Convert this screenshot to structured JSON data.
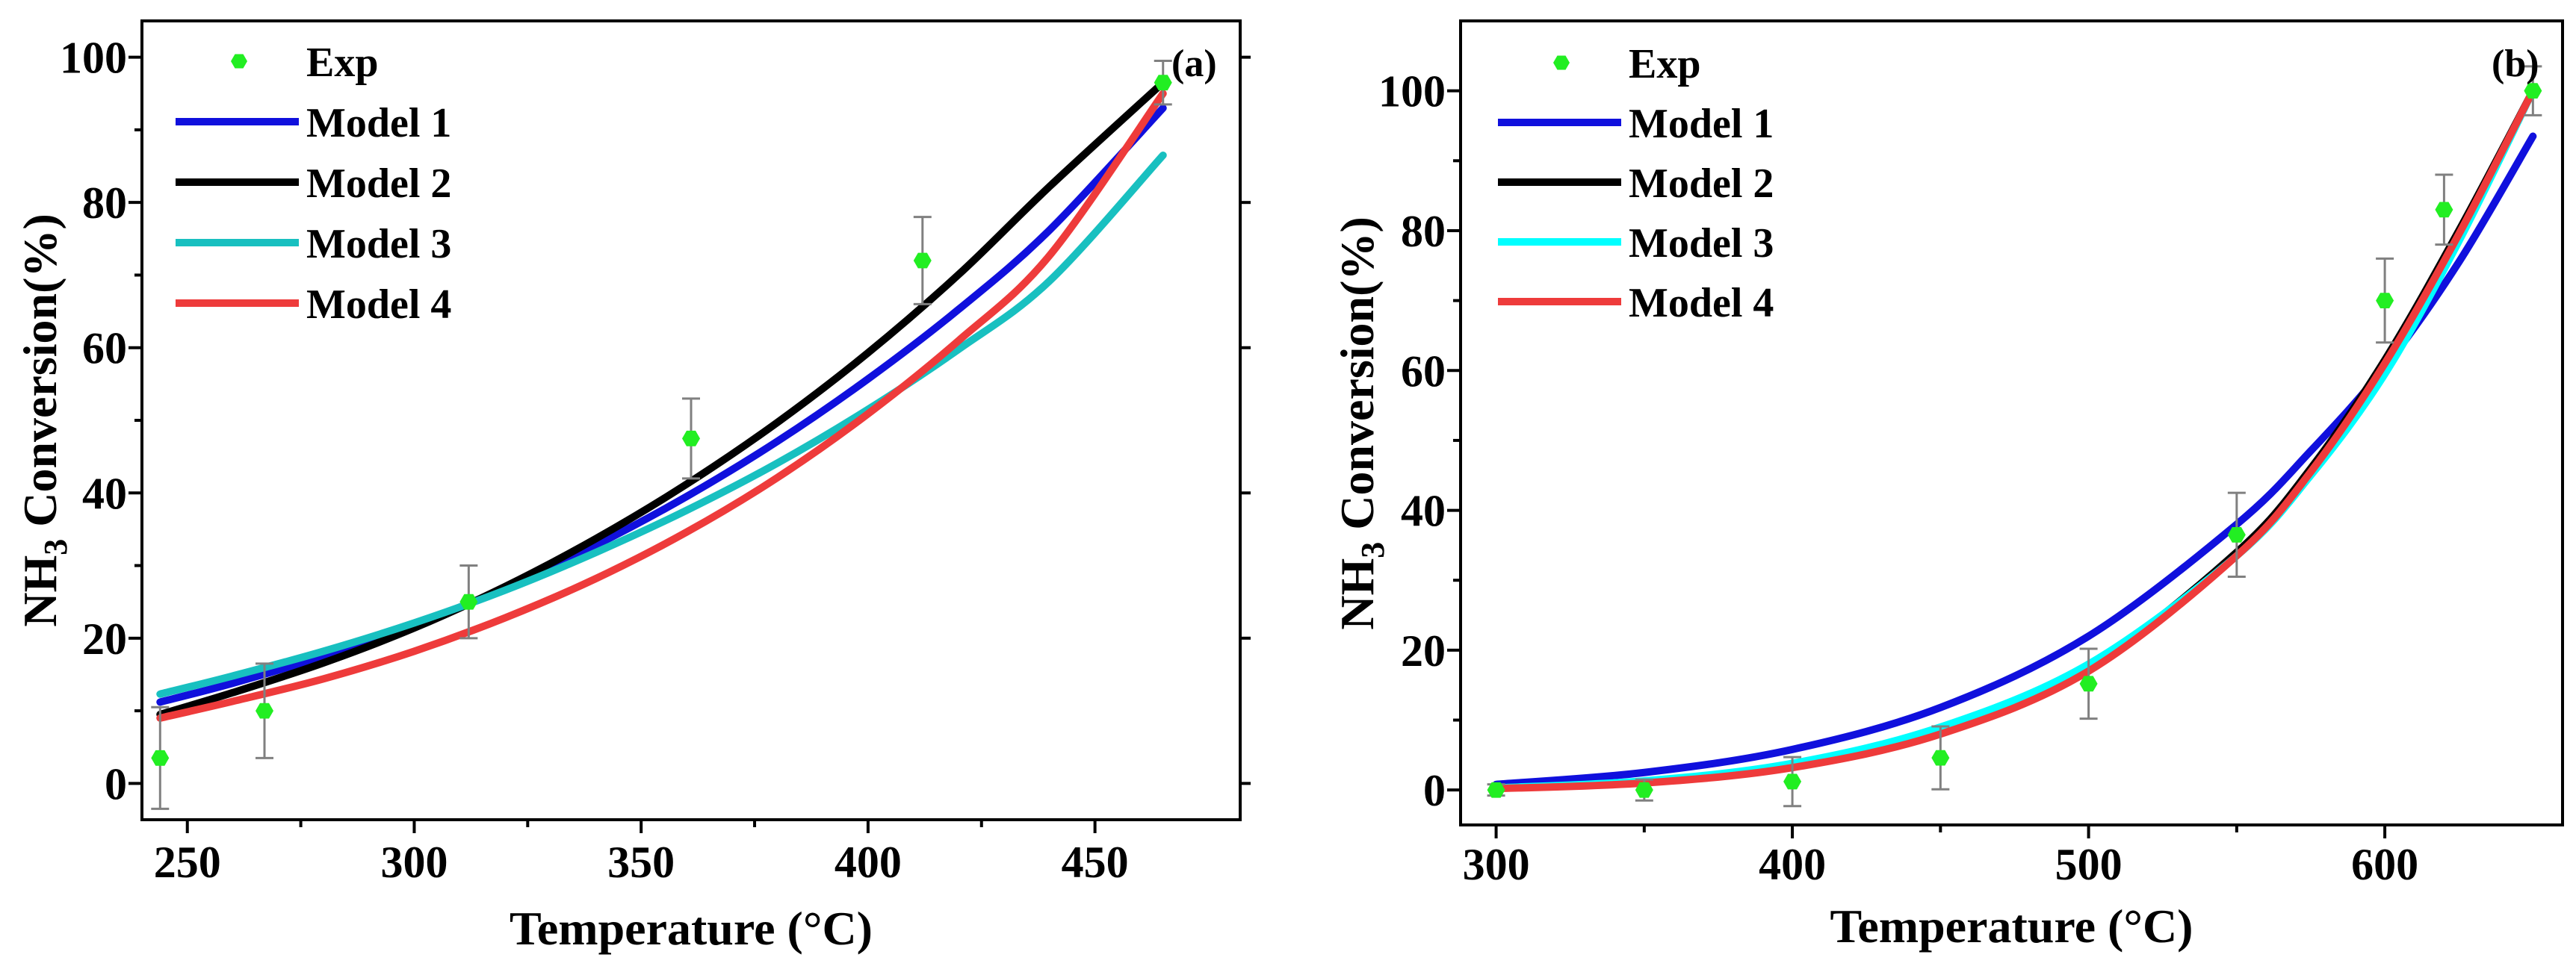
{
  "colors": {
    "exp": "#22ee22",
    "errorbar": "#808080",
    "model1": "#1010dd",
    "model2": "#000000",
    "model3_a": "#18c0c0",
    "model3_b": "#00ffff",
    "model4": "#ee3b3b"
  },
  "chart_data": [
    {
      "type": "line",
      "panel_label": "(a)",
      "xlabel": "Temperature (°C)",
      "ylabel_main": "NH",
      "ylabel_sub": "3",
      "ylabel_rest": " Conversion(%)",
      "xlim": [
        240,
        482
      ],
      "ylim": [
        -5,
        105
      ],
      "xticks": [
        250,
        300,
        350,
        400,
        450
      ],
      "yticks": [
        0,
        20,
        40,
        60,
        80,
        100
      ],
      "legend": [
        "Exp",
        "Model 1",
        "Model 2",
        "Model 3",
        "Model 4"
      ],
      "legend_location": "top-left",
      "exp": {
        "name": "Exp",
        "x": [
          244,
          267,
          312,
          361,
          412,
          465
        ],
        "y": [
          3.5,
          10,
          25,
          47.5,
          72,
          96.5
        ],
        "err": [
          7,
          6.5,
          5,
          5.5,
          6,
          3
        ]
      },
      "series": [
        {
          "name": "Model 1",
          "color_key": "model1",
          "x": [
            244,
            260,
            280,
            300,
            320,
            340,
            360,
            380,
            400,
            420,
            440,
            465
          ],
          "y": [
            11.2,
            13.8,
            17.5,
            21.8,
            26.9,
            32.8,
            39.5,
            47.1,
            55.7,
            65.3,
            76.2,
            93
          ]
        },
        {
          "name": "Model 2",
          "color_key": "model2",
          "x": [
            244,
            260,
            280,
            300,
            320,
            340,
            360,
            380,
            400,
            420,
            440,
            465
          ],
          "y": [
            9.5,
            12.5,
            16.6,
            21.4,
            27.1,
            33.7,
            41.2,
            49.7,
            59.3,
            70.1,
            82.2,
            96.5
          ]
        },
        {
          "name": "Model 3",
          "color_key": "model3_a",
          "x": [
            244,
            260,
            280,
            300,
            320,
            340,
            360,
            380,
            400,
            420,
            440,
            465
          ],
          "y": [
            12.3,
            14.8,
            18.2,
            22.1,
            26.6,
            31.8,
            37.6,
            44.1,
            51.5,
            59.8,
            69.2,
            86.5
          ]
        },
        {
          "name": "Model 4",
          "color_key": "model4",
          "x": [
            244,
            260,
            280,
            300,
            320,
            340,
            360,
            380,
            400,
            420,
            440,
            465
          ],
          "y": [
            9,
            11.3,
            14.4,
            18.2,
            22.8,
            28.2,
            34.6,
            42.1,
            50.9,
            61,
            72.7,
            95
          ]
        }
      ]
    },
    {
      "type": "line",
      "panel_label": "(b)",
      "xlabel": "Temperature (°C)",
      "ylabel_main": "NH",
      "ylabel_sub": "3",
      "ylabel_rest": " Conversion(%)",
      "xlim": [
        288,
        660
      ],
      "ylim": [
        -5,
        110
      ],
      "xticks": [
        300,
        400,
        500,
        600
      ],
      "yticks": [
        0,
        20,
        40,
        60,
        80,
        100
      ],
      "legend": [
        "Exp",
        "Model 1",
        "Model 2",
        "Model 3",
        "Model 4"
      ],
      "legend_location": "top-left",
      "exp": {
        "name": "Exp",
        "x": [
          300,
          350,
          400,
          450,
          500,
          550,
          600,
          620,
          650
        ],
        "y": [
          0,
          0,
          1.2,
          4.6,
          15.2,
          36.5,
          70,
          83,
          100
        ],
        "err": [
          0.8,
          1.5,
          3.5,
          4.5,
          5,
          6,
          6,
          5,
          3.5
        ]
      },
      "series": [
        {
          "name": "Model 1",
          "color_key": "model1",
          "x": [
            300,
            350,
            400,
            450,
            500,
            550,
            575,
            600,
            625,
            650
          ],
          "y": [
            0.8,
            2.5,
            5.8,
            11.8,
            22,
            38,
            48.5,
            60.5,
            75.5,
            93.5
          ]
        },
        {
          "name": "Model 2",
          "color_key": "model2",
          "x": [
            300,
            350,
            400,
            450,
            500,
            550,
            575,
            600,
            625,
            650
          ],
          "y": [
            0.3,
            1.2,
            3.5,
            8.3,
            17.5,
            34,
            46,
            61.5,
            80,
            100
          ]
        },
        {
          "name": "Model 3",
          "color_key": "model3_b",
          "x": [
            300,
            350,
            400,
            450,
            500,
            550,
            575,
            600,
            625,
            650
          ],
          "y": [
            0.3,
            1.3,
            3.8,
            9,
            18,
            33.5,
            45,
            59.5,
            78.5,
            100
          ]
        },
        {
          "name": "Model 4",
          "color_key": "model4",
          "x": [
            300,
            350,
            400,
            450,
            500,
            550,
            575,
            600,
            625,
            650
          ],
          "y": [
            0.2,
            1,
            3.2,
            8,
            17,
            33.5,
            45.5,
            61,
            79.5,
            100
          ]
        }
      ]
    }
  ]
}
